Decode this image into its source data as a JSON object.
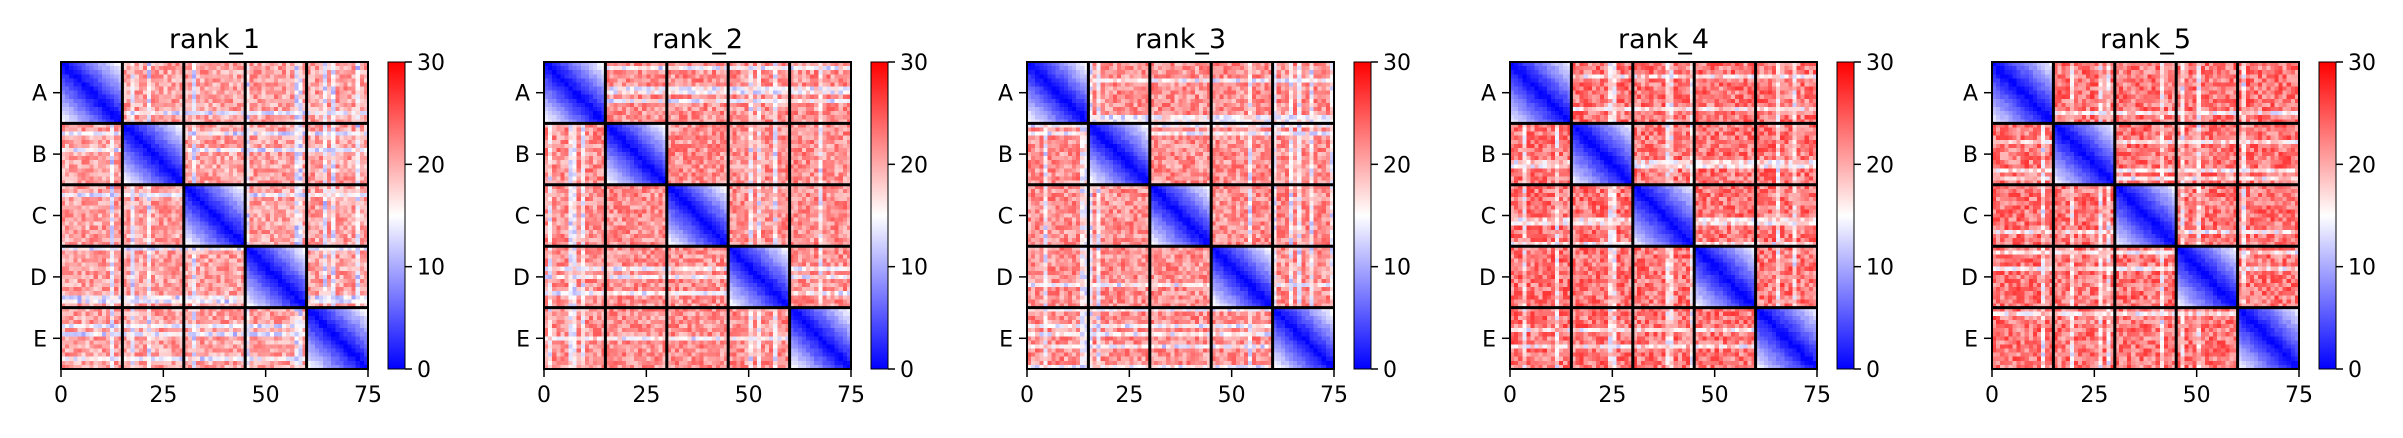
{
  "figure": {
    "panel_titles": [
      "rank_1",
      "rank_2",
      "rank_3",
      "rank_4",
      "rank_5"
    ]
  },
  "chart_data": [
    {
      "type": "heatmap",
      "title": "rank_1",
      "xlabel": "",
      "ylabel": "",
      "x_ticks": [
        0,
        25,
        50,
        75
      ],
      "y_labels": [
        "A",
        "B",
        "C",
        "D",
        "E"
      ],
      "matrix_size": 75,
      "block_size": 15,
      "colormap": "bwr",
      "colorbar_range": [
        0,
        30
      ],
      "colorbar_ticks": [
        0,
        10,
        20,
        30
      ],
      "within_block_value_range": [
        0,
        15
      ],
      "between_block_value_range": [
        17,
        24
      ],
      "grid": false
    },
    {
      "type": "heatmap",
      "title": "rank_2",
      "xlabel": "",
      "ylabel": "",
      "x_ticks": [
        0,
        25,
        50,
        75
      ],
      "y_labels": [
        "A",
        "B",
        "C",
        "D",
        "E"
      ],
      "matrix_size": 75,
      "block_size": 15,
      "colormap": "bwr",
      "colorbar_range": [
        0,
        30
      ],
      "colorbar_ticks": [
        0,
        10,
        20,
        30
      ],
      "within_block_value_range": [
        0,
        15
      ],
      "between_block_value_range": [
        18,
        25
      ],
      "grid": false
    },
    {
      "type": "heatmap",
      "title": "rank_3",
      "xlabel": "",
      "ylabel": "",
      "x_ticks": [
        0,
        25,
        50,
        75
      ],
      "y_labels": [
        "A",
        "B",
        "C",
        "D",
        "E"
      ],
      "matrix_size": 75,
      "block_size": 15,
      "colormap": "bwr",
      "colorbar_range": [
        0,
        30
      ],
      "colorbar_ticks": [
        0,
        10,
        20,
        30
      ],
      "within_block_value_range": [
        0,
        15
      ],
      "between_block_value_range": [
        18,
        25
      ],
      "grid": false
    },
    {
      "type": "heatmap",
      "title": "rank_4",
      "xlabel": "",
      "ylabel": "",
      "x_ticks": [
        0,
        25,
        50,
        75
      ],
      "y_labels": [
        "A",
        "B",
        "C",
        "D",
        "E"
      ],
      "matrix_size": 75,
      "block_size": 15,
      "colormap": "bwr",
      "colorbar_range": [
        0,
        30
      ],
      "colorbar_ticks": [
        0,
        10,
        20,
        30
      ],
      "within_block_value_range": [
        0,
        14
      ],
      "between_block_value_range": [
        19,
        27
      ],
      "grid": false
    },
    {
      "type": "heatmap",
      "title": "rank_5",
      "xlabel": "",
      "ylabel": "",
      "x_ticks": [
        0,
        25,
        50,
        75
      ],
      "y_labels": [
        "A",
        "B",
        "C",
        "D",
        "E"
      ],
      "matrix_size": 75,
      "block_size": 15,
      "colormap": "bwr",
      "colorbar_range": [
        0,
        30
      ],
      "colorbar_ticks": [
        0,
        10,
        20,
        30
      ],
      "within_block_value_range": [
        0,
        14
      ],
      "between_block_value_range": [
        19,
        27
      ],
      "grid": false
    }
  ]
}
